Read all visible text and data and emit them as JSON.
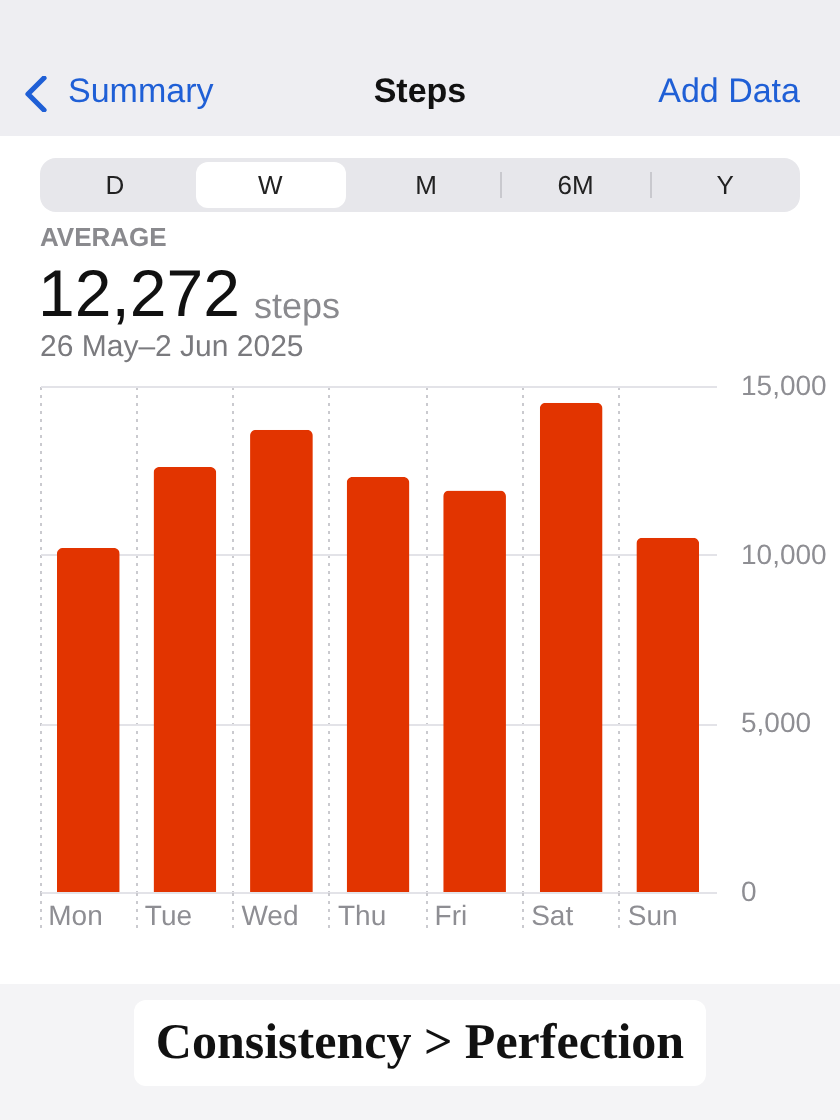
{
  "chart_data": {
    "type": "bar",
    "title": "Steps",
    "subtitle": "26 May–2 Jun 2025",
    "categories": [
      "Mon",
      "Tue",
      "Wed",
      "Thu",
      "Fri",
      "Sat",
      "Sun"
    ],
    "values": [
      10200,
      12600,
      13700,
      12300,
      11900,
      14500,
      10500
    ],
    "color": "#e23400",
    "ylim": [
      0,
      15000
    ],
    "yticks": [
      0,
      {
        "value": 5000,
        "label": "5,000"
      },
      {
        "value": 10000,
        "label": "10,000"
      },
      {
        "value": 15000,
        "label": "15,000"
      }
    ],
    "grid": true,
    "annotations": [
      "Summary",
      "Add Data",
      "D",
      "W",
      "M",
      "6M",
      "Y",
      "AVERAGE",
      "12,272",
      "steps",
      "Consistency > Perfection"
    ]
  }
}
